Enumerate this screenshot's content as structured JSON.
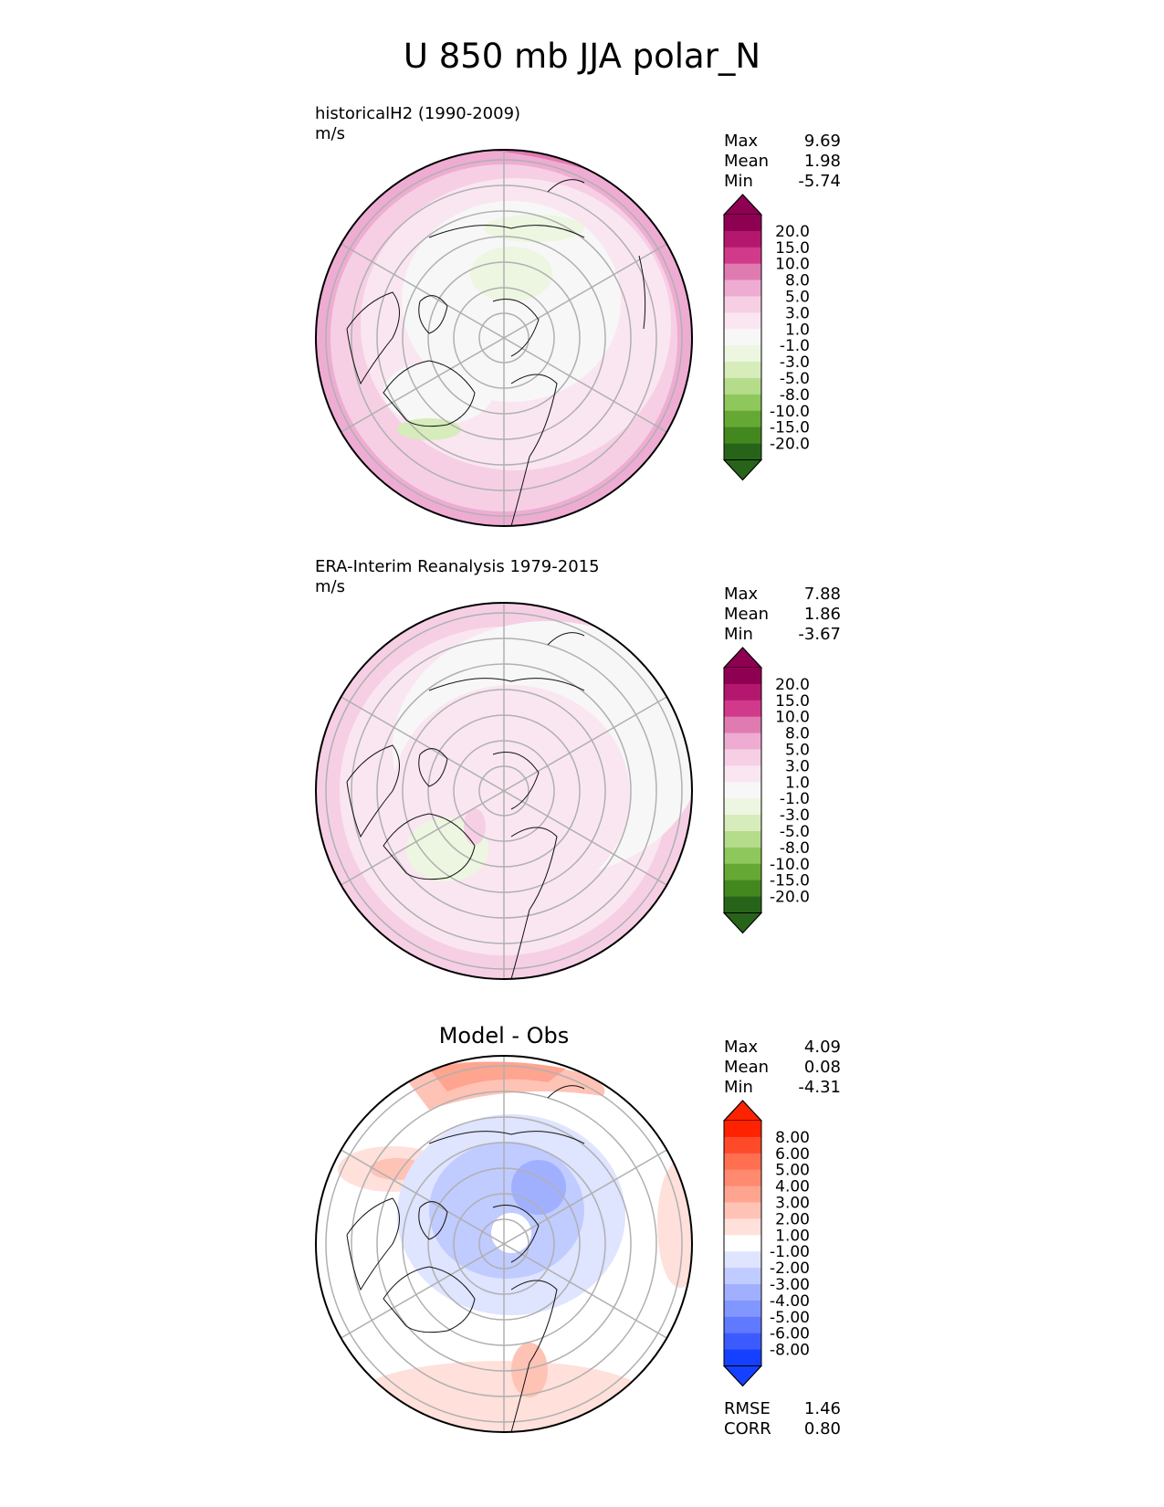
{
  "title": "U 850 mb JJA polar_N",
  "stat_labels": {
    "max": "Max",
    "mean": "Mean",
    "min": "Min",
    "rmse": "RMSE",
    "corr": "CORR"
  },
  "panels": [
    {
      "title_line1": "historicalH2 (1990-2009)",
      "title_line2": "m/s",
      "stats": {
        "max": "9.69",
        "mean": "1.98",
        "min": "-5.74"
      },
      "colorbar": {
        "labels": [
          "20.0",
          "15.0",
          "10.0",
          "8.0",
          "5.0",
          "3.0",
          "1.0",
          "-1.0",
          "-3.0",
          "-5.0",
          "-8.0",
          "-10.0",
          "-15.0",
          "-20.0"
        ],
        "colors": [
          "#8e0152",
          "#b3176e",
          "#d13a8a",
          "#e07bb1",
          "#eeacd3",
          "#f6cfe5",
          "#fae6f1",
          "#f7f7f7",
          "#edf6e0",
          "#d6ecba",
          "#b5dc8a",
          "#8ec75b",
          "#66a834",
          "#43881f",
          "#276419"
        ],
        "top_color": "#8e0152",
        "bottom_color": "#276419"
      }
    },
    {
      "title_line1": "ERA-Interim Reanalysis 1979-2015",
      "title_line2": "m/s",
      "stats": {
        "max": "7.88",
        "mean": "1.86",
        "min": "-3.67"
      },
      "colorbar": {
        "labels": [
          "20.0",
          "15.0",
          "10.0",
          "8.0",
          "5.0",
          "3.0",
          "1.0",
          "-1.0",
          "-3.0",
          "-5.0",
          "-8.0",
          "-10.0",
          "-15.0",
          "-20.0"
        ],
        "colors": [
          "#8e0152",
          "#b3176e",
          "#d13a8a",
          "#e07bb1",
          "#eeacd3",
          "#f6cfe5",
          "#fae6f1",
          "#f7f7f7",
          "#edf6e0",
          "#d6ecba",
          "#b5dc8a",
          "#8ec75b",
          "#66a834",
          "#43881f",
          "#276419"
        ],
        "top_color": "#8e0152",
        "bottom_color": "#276419"
      }
    },
    {
      "title_center": "Model - Obs",
      "stats": {
        "max": "4.09",
        "mean": "0.08",
        "min": "-4.31"
      },
      "metrics": {
        "rmse": "1.46",
        "corr": "0.80"
      },
      "colorbar": {
        "labels": [
          "8.00",
          "6.00",
          "5.00",
          "4.00",
          "3.00",
          "2.00",
          "1.00",
          "-1.00",
          "-2.00",
          "-3.00",
          "-4.00",
          "-5.00",
          "-6.00",
          "-8.00"
        ],
        "colors": [
          "#ff2200",
          "#ff4a2a",
          "#ff6f50",
          "#ff8a70",
          "#ffa48f",
          "#ffc3b6",
          "#ffe0da",
          "#ffffff",
          "#dfe4ff",
          "#c0cbff",
          "#a0b0ff",
          "#8296ff",
          "#5f79ff",
          "#3c5bff",
          "#1540ff"
        ],
        "top_color": "#ff2200",
        "bottom_color": "#1540ff"
      }
    }
  ],
  "chart_data": [
    {
      "type": "heatmap",
      "projection": "north polar stereographic",
      "variable": "U 850 mb",
      "season": "JJA",
      "units": "m/s",
      "title": "historicalH2 (1990-2009)",
      "max": 9.69,
      "mean": 1.98,
      "min": -5.74,
      "levels": [
        -20,
        -15,
        -10,
        -8,
        -5,
        -3,
        -1,
        1,
        3,
        5,
        8,
        10,
        15,
        20
      ],
      "grid": true
    },
    {
      "type": "heatmap",
      "projection": "north polar stereographic",
      "variable": "U 850 mb",
      "season": "JJA",
      "units": "m/s",
      "title": "ERA-Interim Reanalysis 1979-2015",
      "max": 7.88,
      "mean": 1.86,
      "min": -3.67,
      "levels": [
        -20,
        -15,
        -10,
        -8,
        -5,
        -3,
        -1,
        1,
        3,
        5,
        8,
        10,
        15,
        20
      ],
      "grid": true
    },
    {
      "type": "heatmap",
      "projection": "north polar stereographic",
      "title": "Model - Obs",
      "max": 4.09,
      "mean": 0.08,
      "min": -4.31,
      "rmse": 1.46,
      "corr": 0.8,
      "levels": [
        -8,
        -6,
        -5,
        -4,
        -3,
        -2,
        -1,
        1,
        2,
        3,
        4,
        5,
        6,
        8
      ],
      "grid": true
    }
  ]
}
